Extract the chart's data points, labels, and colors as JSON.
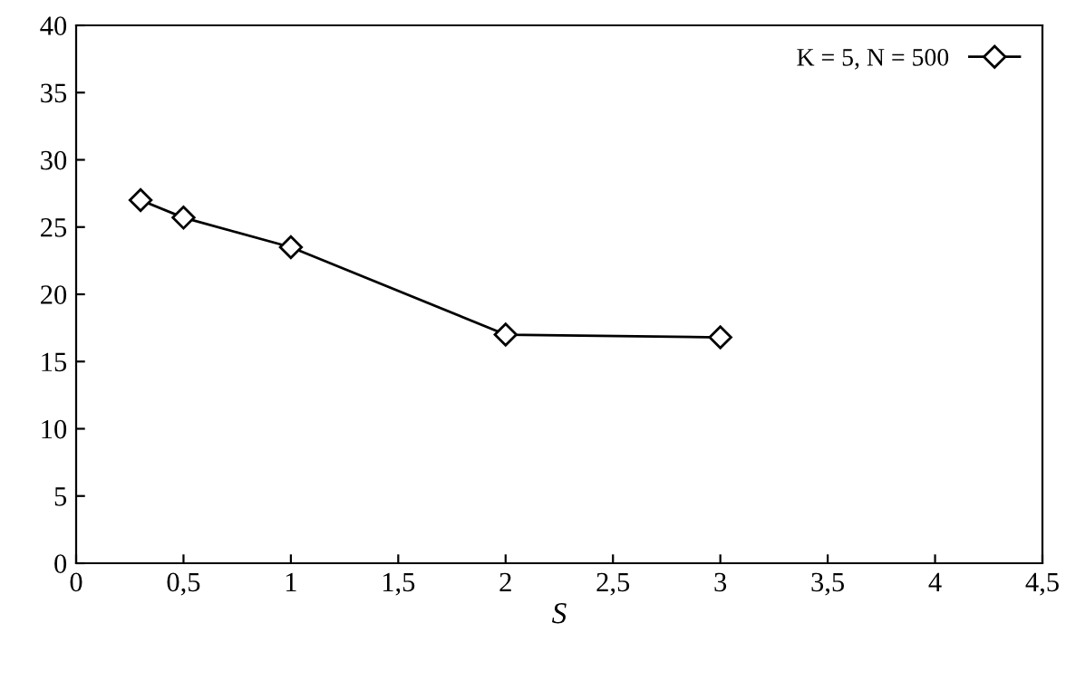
{
  "chart_data": {
    "type": "line",
    "xlabel": "S",
    "x": [
      0.3,
      0.5,
      1,
      2,
      3
    ],
    "series": [
      {
        "name": "K = 5, N = 500",
        "color": "#000000",
        "values": [
          27,
          25.7,
          23.5,
          17,
          16.8
        ]
      }
    ],
    "xlim": [
      0,
      4.5
    ],
    "ylim": [
      0,
      40
    ],
    "xticks": [
      0,
      {
        "value": 0.5,
        "label": "0,5"
      },
      1,
      {
        "value": 1.5,
        "label": "1,5"
      },
      2,
      {
        "value": 2.5,
        "label": "2,5"
      },
      3,
      {
        "value": 3.5,
        "label": "3,5"
      },
      4,
      {
        "value": 4.5,
        "label": "4,5"
      }
    ],
    "yticks": [
      0,
      5,
      10,
      15,
      20,
      25,
      30,
      35,
      40
    ],
    "marker": "diamond",
    "line_style": "solid",
    "grid": false,
    "legend": "top right"
  }
}
